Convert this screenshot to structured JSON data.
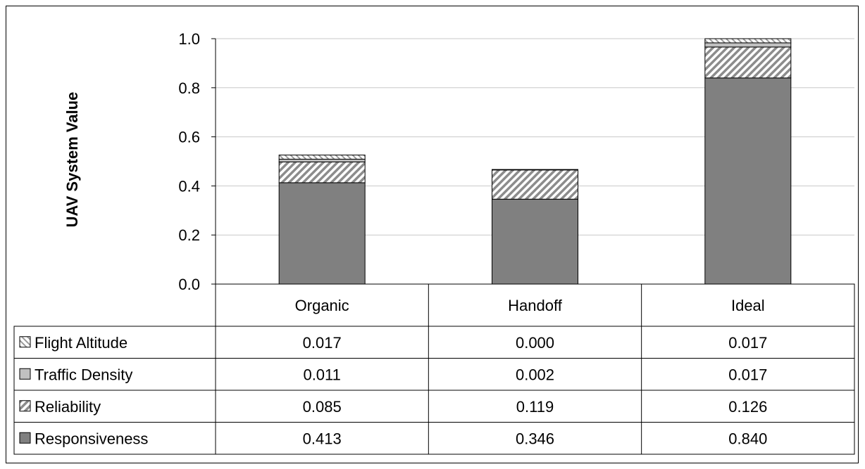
{
  "chart_data": {
    "type": "bar",
    "stacked": true,
    "title": "",
    "xlabel": "",
    "ylabel": "UAV System Value",
    "ylim": [
      0,
      1.0
    ],
    "yticks": [
      "0.0",
      "0.2",
      "0.4",
      "0.6",
      "0.8",
      "1.0"
    ],
    "grid": true,
    "legend_placement": "data-table-left",
    "categories": [
      "Organic",
      "Handoff",
      "Ideal"
    ],
    "series": [
      {
        "name": "Responsiveness",
        "values": [
          0.413,
          0.346,
          0.84
        ],
        "labels": [
          "0.413",
          "0.346",
          "0.840"
        ],
        "fill": "solid",
        "color": "#808080"
      },
      {
        "name": "Reliability",
        "values": [
          0.085,
          0.119,
          0.126
        ],
        "labels": [
          "0.085",
          "0.119",
          "0.126"
        ],
        "fill": "diag-hatch",
        "color": "#a0a0a0"
      },
      {
        "name": "Traffic Density",
        "values": [
          0.011,
          0.002,
          0.017
        ],
        "labels": [
          "0.011",
          "0.002",
          "0.017"
        ],
        "fill": "solid",
        "color": "#c0c0c0"
      },
      {
        "name": "Flight Altitude",
        "values": [
          0.017,
          0.0,
          0.017
        ],
        "labels": [
          "0.017",
          "0.000",
          "0.017"
        ],
        "fill": "back-hatch",
        "color": "#c0c0c0"
      }
    ],
    "table_row_order": [
      "Flight Altitude",
      "Traffic Density",
      "Reliability",
      "Responsiveness"
    ]
  }
}
